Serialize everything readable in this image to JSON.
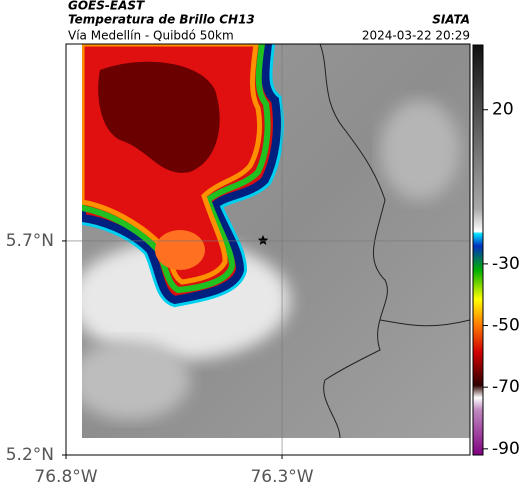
{
  "chart_data": {
    "type": "map",
    "title": "GOES-EAST",
    "subtitle": "Temperatura de Brillo CH13",
    "region": "Vía Medellín - Quibdó 50km",
    "source": "SIATA",
    "timestamp": "2024-03-22 20:29",
    "xlim": [
      -76.8,
      -75.865
    ],
    "ylim": [
      5.2,
      6.16
    ],
    "xticks": [
      {
        "value": -76.8,
        "label": "76.8°W"
      },
      {
        "value": -76.3,
        "label": "76.3°W"
      }
    ],
    "yticks": [
      {
        "value": 5.7,
        "label": "5.7°N"
      },
      {
        "value": 5.2,
        "label": "5.2°N"
      }
    ],
    "grid": true,
    "colorbar": {
      "lim": [
        -92,
        41
      ],
      "ticks": [
        20,
        -30,
        -50,
        -70,
        -90
      ]
    }
  }
}
